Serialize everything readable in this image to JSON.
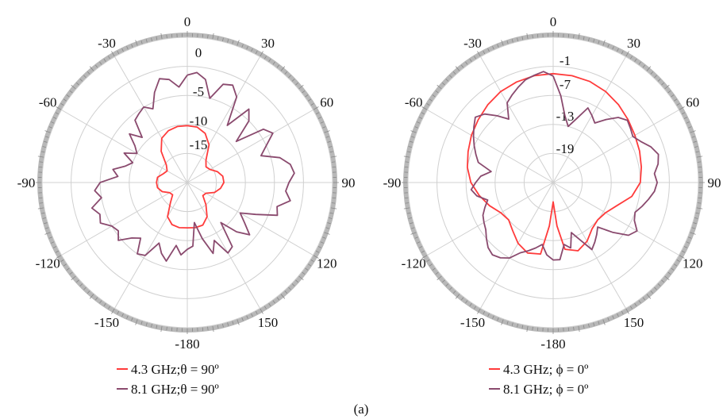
{
  "figure_caption": "(a)",
  "colors": {
    "series_4_3": "#ff3b3b",
    "series_8_1": "#8a4a6e",
    "grid": "#d0d0d0",
    "outer_ring": "#b8b8b8"
  },
  "chart_data": [
    {
      "type": "polar-line",
      "title": "",
      "angle_unit": "deg",
      "angle_ticks": [
        "0",
        "30",
        "60",
        "90",
        "120",
        "150",
        "-180",
        "-150",
        "-120",
        "-90",
        "-60",
        "-30"
      ],
      "angle_tick_values": [
        0,
        30,
        60,
        90,
        120,
        150,
        180,
        -150,
        -120,
        -90,
        -60,
        -30
      ],
      "radial_ticks": [
        "0",
        "-5",
        "-10",
        "-15"
      ],
      "radial_tick_values": [
        0,
        -5,
        -10,
        -15
      ],
      "r_range": [
        -20,
        5
      ],
      "grid": true,
      "legend_position": "bottom",
      "legend": [
        "4.3 GHz;θ = 90º",
        "8.1 GHz;θ = 90º"
      ],
      "series": [
        {
          "name": "4.3 GHz;θ = 90º",
          "color": "#ff3b3b",
          "angles": [
            0,
            10,
            20,
            30,
            40,
            50,
            60,
            70,
            80,
            90,
            100,
            110,
            120,
            130,
            140,
            150,
            160,
            170,
            180,
            190,
            200,
            210,
            220,
            230,
            240,
            250,
            260,
            270,
            280,
            290,
            300,
            310,
            320,
            330,
            340,
            350
          ],
          "r": [
            -10.2,
            -10.3,
            -11,
            -12.5,
            -15,
            -15.8,
            -15.5,
            -14.5,
            -13.8,
            -13.7,
            -14.2,
            -15,
            -16.3,
            -16.5,
            -15,
            -13.2,
            -12.2,
            -12.1,
            -12.2,
            -12.1,
            -12.3,
            -13.2,
            -15.5,
            -16.7,
            -16.5,
            -15.4,
            -14.8,
            -14.7,
            -14.8,
            -15.6,
            -16,
            -15.3,
            -13,
            -11.2,
            -10.5,
            -10.2
          ]
        },
        {
          "name": "8.1 GHz;θ = 90º",
          "color": "#8a4a6e",
          "angles": [
            0,
            5,
            10,
            15,
            20,
            25,
            30,
            35,
            40,
            45,
            50,
            55,
            60,
            65,
            70,
            75,
            80,
            85,
            90,
            95,
            100,
            105,
            110,
            115,
            120,
            125,
            130,
            135,
            140,
            145,
            150,
            155,
            160,
            165,
            170,
            175,
            180,
            185,
            190,
            195,
            200,
            205,
            210,
            215,
            220,
            225,
            230,
            235,
            240,
            245,
            250,
            255,
            260,
            265,
            270,
            275,
            280,
            285,
            290,
            295,
            300,
            305,
            310,
            315,
            320,
            325,
            330,
            335,
            340,
            345,
            350,
            355
          ],
          "r": [
            -1.5,
            -1,
            -2,
            -5,
            -2,
            -1.5,
            -3,
            -8,
            -3.5,
            -5,
            -9,
            -4,
            -3,
            -5,
            -6.5,
            -3.5,
            -2,
            -1.5,
            -2.5,
            -3,
            -2,
            -4,
            -3.5,
            -7,
            -9.5,
            -8,
            -6,
            -8,
            -11,
            -6.5,
            -6,
            -9,
            -7,
            -10,
            -13,
            -9,
            -8.5,
            -7.5,
            -9,
            -6,
            -7,
            -8.5,
            -5.5,
            -5,
            -7.5,
            -6.5,
            -4.5,
            -5.5,
            -5,
            -3.5,
            -4,
            -3,
            -5,
            -4,
            -5,
            -8,
            -7,
            -9,
            -10,
            -8,
            -10,
            -9,
            -7,
            -9,
            -6,
            -5.5,
            -5,
            -6,
            -3.5,
            -1.5,
            -2,
            -3.5
          ]
        }
      ]
    },
    {
      "type": "polar-line",
      "title": "",
      "angle_unit": "deg",
      "angle_ticks": [
        "0",
        "30",
        "60",
        "90",
        "120",
        "150",
        "-180",
        "-150",
        "-120",
        "-90",
        "-60",
        "-30"
      ],
      "angle_tick_values": [
        0,
        30,
        60,
        90,
        120,
        150,
        180,
        -150,
        -120,
        -90,
        -60,
        -30
      ],
      "radial_ticks": [
        "-1",
        "-7",
        "-13",
        "-19"
      ],
      "radial_tick_values": [
        -1,
        -7,
        -13,
        -19
      ],
      "r_range": [
        -25,
        5
      ],
      "grid": true,
      "legend_position": "bottom",
      "legend": [
        "4.3 GHz; ϕ = 0º",
        "8.1 GHz; ϕ = 0º"
      ],
      "series": [
        {
          "name": "4.3 GHz; ϕ = 0º",
          "color": "#ff3b3b",
          "angles": [
            0,
            10,
            20,
            30,
            40,
            50,
            60,
            70,
            80,
            90,
            100,
            110,
            120,
            130,
            140,
            150,
            160,
            170,
            175,
            180,
            185,
            190,
            200,
            210,
            220,
            230,
            240,
            250,
            260,
            270,
            280,
            290,
            300,
            310,
            320,
            330,
            340,
            350
          ],
          "r": [
            -2.5,
            -2.6,
            -2.8,
            -3.3,
            -4,
            -4.8,
            -5.5,
            -6,
            -6.5,
            -7,
            -8.5,
            -11,
            -12.5,
            -13,
            -12.5,
            -11,
            -10,
            -11,
            -16,
            -21,
            -16,
            -10,
            -9.5,
            -10.5,
            -12,
            -13,
            -12.5,
            -11,
            -9.5,
            -8,
            -7,
            -6.3,
            -5.5,
            -4.8,
            -4,
            -3.3,
            -2.9,
            -2.6
          ]
        },
        {
          "name": "8.1 GHz; ϕ = 0º",
          "color": "#8a4a6e",
          "angles": [
            0,
            5,
            10,
            15,
            20,
            25,
            30,
            35,
            40,
            45,
            50,
            55,
            60,
            65,
            70,
            75,
            80,
            85,
            90,
            95,
            100,
            105,
            110,
            115,
            120,
            125,
            130,
            135,
            140,
            145,
            150,
            155,
            160,
            165,
            170,
            175,
            180,
            185,
            190,
            195,
            200,
            205,
            210,
            215,
            220,
            225,
            230,
            235,
            240,
            245,
            250,
            255,
            260,
            265,
            270,
            275,
            280,
            285,
            290,
            295,
            300,
            305,
            310,
            315,
            320,
            325,
            330,
            335,
            340,
            345,
            350,
            355
          ],
          "r": [
            -3,
            -7,
            -11,
            -13,
            -11,
            -8,
            -9,
            -10,
            -8,
            -6,
            -5,
            -5.5,
            -6,
            -5,
            -3.5,
            -2.5,
            -3,
            -4,
            -3.5,
            -4,
            -5,
            -6,
            -7,
            -6.5,
            -5,
            -6,
            -9,
            -12,
            -11,
            -10,
            -9,
            -12,
            -14,
            -11,
            -12,
            -9,
            -9,
            -10,
            -12,
            -11,
            -10,
            -9,
            -7,
            -6,
            -5.5,
            -6,
            -7,
            -8,
            -8.5,
            -9,
            -10,
            -11,
            -9,
            -8,
            -9,
            -10,
            -12,
            -9,
            -8,
            -7,
            -6,
            -5,
            -4,
            -5,
            -7,
            -9,
            -6,
            -5,
            -4,
            -3,
            -2.5,
            -2
          ]
        }
      ]
    }
  ]
}
